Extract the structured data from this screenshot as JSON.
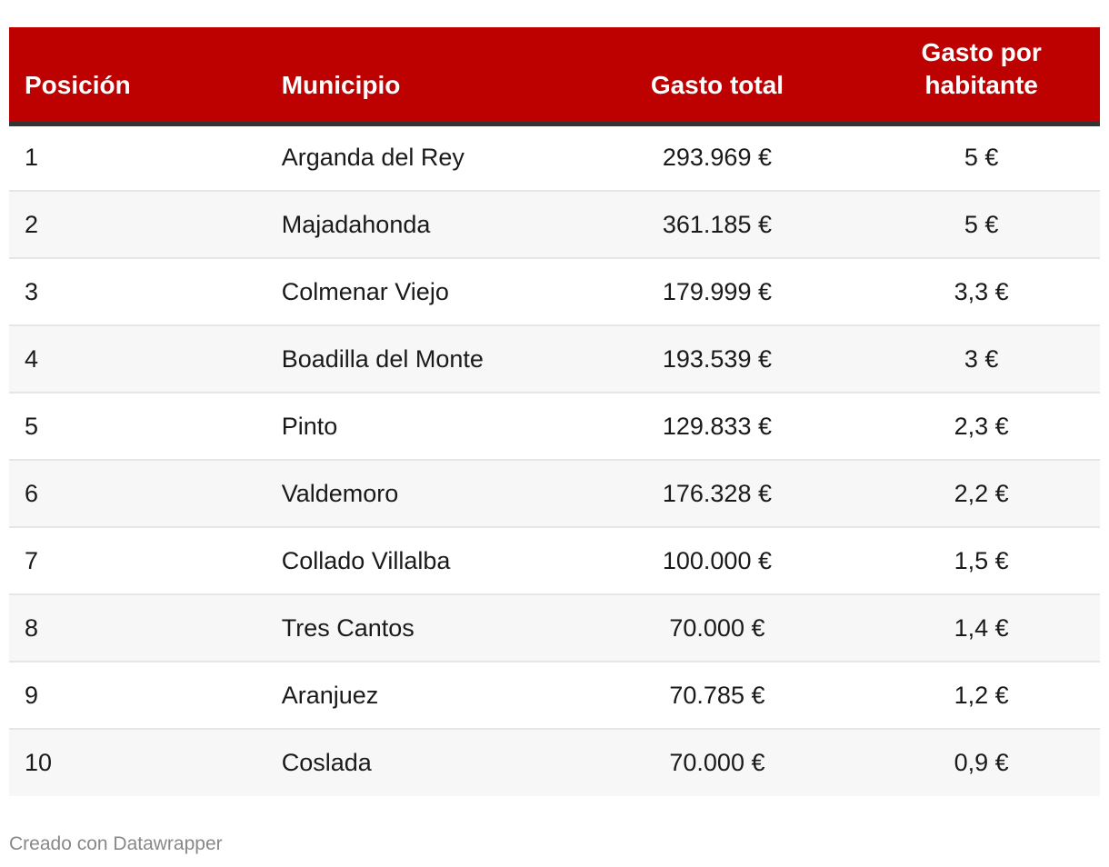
{
  "chart_data": {
    "type": "table",
    "columns": [
      "Posición",
      "Municipio",
      "Gasto total",
      "Gasto por habitante"
    ],
    "header": {
      "posicion": "Posición",
      "municipio": "Municipio",
      "gasto_total": "Gasto total",
      "gasto_habitante": "Gasto por habitante"
    },
    "rows": [
      {
        "posicion": "1",
        "municipio": "Arganda del Rey",
        "gasto_total": "293.969 €",
        "gasto_habitante": "5 €"
      },
      {
        "posicion": "2",
        "municipio": "Majadahonda",
        "gasto_total": "361.185 €",
        "gasto_habitante": "5 €"
      },
      {
        "posicion": "3",
        "municipio": "Colmenar Viejo",
        "gasto_total": "179.999 €",
        "gasto_habitante": "3,3 €"
      },
      {
        "posicion": "4",
        "municipio": "Boadilla del Monte",
        "gasto_total": "193.539 €",
        "gasto_habitante": "3 €"
      },
      {
        "posicion": "5",
        "municipio": "Pinto",
        "gasto_total": "129.833 €",
        "gasto_habitante": "2,3 €"
      },
      {
        "posicion": "6",
        "municipio": "Valdemoro",
        "gasto_total": "176.328 €",
        "gasto_habitante": "2,2 €"
      },
      {
        "posicion": "7",
        "municipio": "Collado Villalba",
        "gasto_total": "100.000 €",
        "gasto_habitante": "1,5 €"
      },
      {
        "posicion": "8",
        "municipio": "Tres Cantos",
        "gasto_total": "70.000 €",
        "gasto_habitante": "1,4 €"
      },
      {
        "posicion": "9",
        "municipio": "Aranjuez",
        "gasto_total": "70.785 €",
        "gasto_habitante": "1,2 €"
      },
      {
        "posicion": "10",
        "municipio": "Coslada",
        "gasto_total": "70.000 €",
        "gasto_habitante": "0,9 €"
      }
    ]
  },
  "footer": {
    "credit": "Creado con Datawrapper"
  },
  "colors": {
    "header_background": "#bd0000",
    "header_text": "#ffffff",
    "header_rule": "#333333",
    "stripe": "#f7f7f7",
    "footer_text": "#888888"
  }
}
